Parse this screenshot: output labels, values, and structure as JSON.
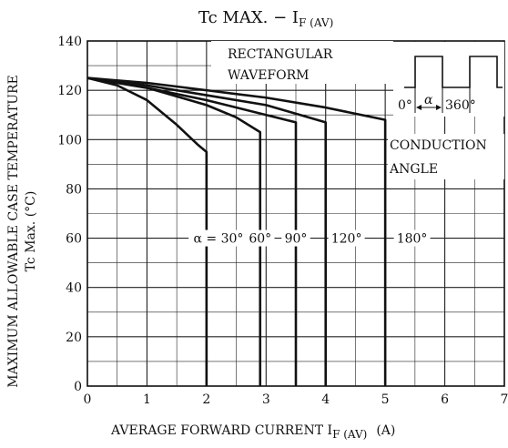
{
  "chart_data": {
    "type": "line",
    "title": "Tc MAX. − I",
    "title_sub": "F (AV)",
    "xlabel": "AVERAGE FORWARD CURRENT  I",
    "xlabel_sub": "F (AV)",
    "xlabel_unit": "(A)",
    "ylabel_line1": "MAXIMUM ALLOWABLE CASE TEMPERATURE",
    "ylabel_line2": "Tc  Max. (°C)",
    "xlim": [
      0,
      7
    ],
    "ylim": [
      0,
      140
    ],
    "x_ticks": [
      "0",
      "1",
      "2",
      "3",
      "4",
      "5",
      "6",
      "7"
    ],
    "y_ticks": [
      "0",
      "20",
      "40",
      "60",
      "80",
      "100",
      "120",
      "140"
    ],
    "grid": true,
    "annotations": {
      "waveform_label_1": "RECTANGULAR",
      "waveform_label_2": "WAVEFORM",
      "wave_0": "0°",
      "wave_alpha": "α",
      "wave_360": "360°",
      "conduction_1": "CONDUCTION",
      "conduction_2": "ANGLE"
    },
    "series": [
      {
        "label": "α = 30°",
        "label_pos": 2.2,
        "x": [
          0,
          0.5,
          1.0,
          1.5,
          1.85,
          2.0,
          2.0
        ],
        "y": [
          125,
          122,
          116,
          106,
          98,
          95,
          0
        ]
      },
      {
        "label": "60°",
        "label_pos": 2.9,
        "x": [
          0,
          1.0,
          2.0,
          2.5,
          2.9,
          2.9
        ],
        "y": [
          125,
          121,
          114,
          109,
          103,
          0
        ]
      },
      {
        "label": "90°",
        "label_pos": 3.5,
        "x": [
          0,
          1.0,
          2.0,
          3.0,
          3.5,
          3.5
        ],
        "y": [
          125,
          121,
          116,
          110,
          107,
          0
        ]
      },
      {
        "label": "120°",
        "label_pos": 4.35,
        "x": [
          0,
          1.0,
          2.0,
          3.0,
          4.0,
          4.0
        ],
        "y": [
          125,
          122,
          118,
          114,
          107,
          0
        ]
      },
      {
        "label": "180°",
        "label_pos": 5.45,
        "x": [
          0,
          1.0,
          2.0,
          3.0,
          4.0,
          5.0,
          5.0
        ],
        "y": [
          125,
          123,
          120,
          117,
          113,
          108,
          0
        ]
      }
    ]
  }
}
